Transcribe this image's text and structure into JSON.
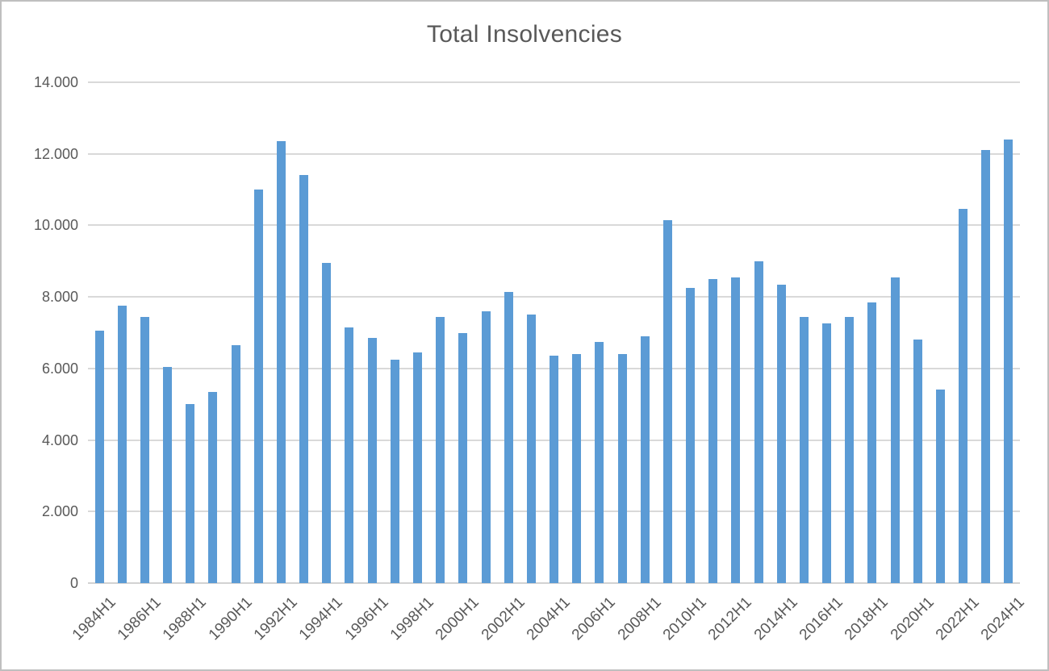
{
  "chart_data": {
    "type": "bar",
    "title": "Total Insolvencies",
    "legend": "none",
    "grid": true,
    "bar_color": "#5B9BD5",
    "title_color": "#595959",
    "axis_label_color": "#595959",
    "gridline_color": "#D9D9D9",
    "axis_line_color": "#D2D2D2",
    "ylim": [
      0,
      14000
    ],
    "y_tick_values": [
      0,
      2000,
      4000,
      6000,
      8000,
      10000,
      12000,
      14000
    ],
    "y_tick_labels": [
      "0",
      "2.000",
      "4.000",
      "6.000",
      "8.000",
      "10.000",
      "12.000",
      "14.000"
    ],
    "x_tick_labels": [
      "1984H1",
      "1986H1",
      "1988H1",
      "1990H1",
      "1992H1",
      "1994H1",
      "1996H1",
      "1998H1",
      "2000H1",
      "2002H1",
      "2004H1",
      "2006H1",
      "2008H1",
      "2010H1",
      "2012H1",
      "2014H1",
      "2016H1",
      "2018H1",
      "2020H1",
      "2022H1",
      "2024H1"
    ],
    "x_tick_every_n_categories": 2,
    "categories": [
      "1984H1",
      "1985H1",
      "1986H1",
      "1987H1",
      "1988H1",
      "1989H1",
      "1990H1",
      "1991H1",
      "1992H1",
      "1993H1",
      "1994H1",
      "1995H1",
      "1996H1",
      "1997H1",
      "1998H1",
      "1999H1",
      "2000H1",
      "2001H1",
      "2002H1",
      "2003H1",
      "2004H1",
      "2005H1",
      "2006H1",
      "2007H1",
      "2008H1",
      "2009H1",
      "2010H1",
      "2011H1",
      "2012H1",
      "2013H1",
      "2014H1",
      "2015H1",
      "2016H1",
      "2017H1",
      "2018H1",
      "2019H1",
      "2020H1",
      "2021H1",
      "2022H1",
      "2023H1",
      "2024H1"
    ],
    "values": [
      7050,
      7750,
      7450,
      6050,
      5000,
      5350,
      6650,
      11000,
      12350,
      11400,
      8950,
      7150,
      6850,
      6250,
      6450,
      7450,
      7000,
      7600,
      8150,
      7500,
      6350,
      6400,
      6750,
      6400,
      6900,
      10150,
      8250,
      8500,
      8550,
      9000,
      8350,
      7450,
      7250,
      7450,
      7850,
      8550,
      6800,
      5400,
      10450,
      12100,
      12400
    ]
  }
}
